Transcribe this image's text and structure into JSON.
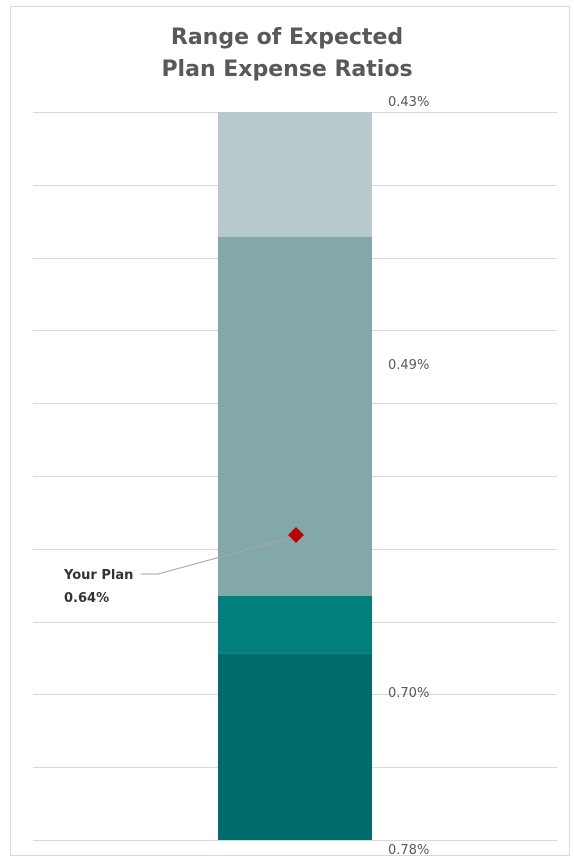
{
  "chart_data": {
    "type": "bar",
    "title_lines": [
      "Range of Expected",
      "Plan Expense Ratios"
    ],
    "xlabel": "",
    "ylabel": "",
    "ylim": [
      0.43,
      0.78
    ],
    "y_inverted": true,
    "grid": true,
    "legend": "none",
    "bands": [
      {
        "from": 0.43,
        "to": 0.49,
        "color": "#b7c9cb"
      },
      {
        "from": 0.49,
        "to": 0.7,
        "color": "#83a8aa"
      },
      {
        "from": 0.7,
        "to": 0.7,
        "color": "#007f7f"
      },
      {
        "from": 0.7,
        "to": 0.78,
        "color": "#006b6d"
      }
    ],
    "band_labels": [
      {
        "text": "0.43%",
        "value": 0.43
      },
      {
        "text": "0.49%",
        "value": 0.49
      },
      {
        "text": "0.70%",
        "value": 0.7
      },
      {
        "text": "0.78%",
        "value": 0.78
      }
    ],
    "marker": {
      "label": "Your Plan",
      "value_text": "0.64%",
      "value": 0.64,
      "color": "#c00000"
    }
  }
}
